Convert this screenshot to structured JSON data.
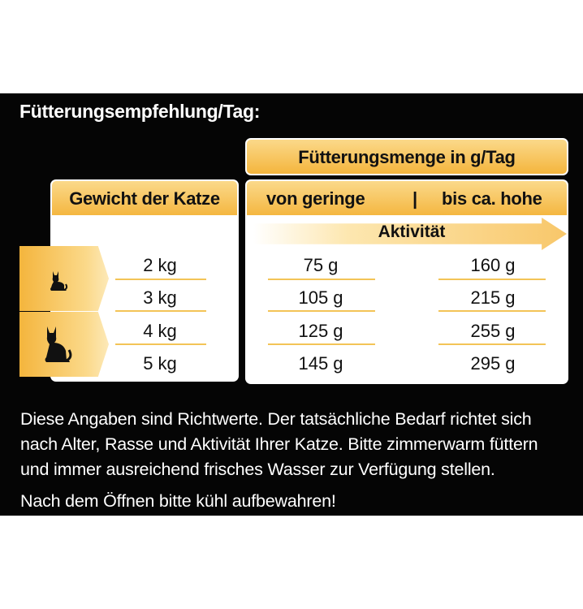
{
  "heading": "Fütterungsempfehlung/Tag:",
  "table": {
    "left_header": "Gewicht der Katze",
    "right_top_header": "Fütterungsmenge in g/Tag",
    "col_low": "von geringe",
    "col_sep": "|",
    "col_high": "bis ca. hohe",
    "activity_label": "Aktivität",
    "rows": [
      {
        "weight": "2 kg",
        "low": "75 g",
        "high": "160 g"
      },
      {
        "weight": "3 kg",
        "low": "105 g",
        "high": "215 g"
      },
      {
        "weight": "4 kg",
        "low": "125 g",
        "high": "255 g"
      },
      {
        "weight": "5 kg",
        "low": "145 g",
        "high": "295 g"
      }
    ]
  },
  "icons": {
    "small_cat": "sitting-cat-icon",
    "large_cat": "sitting-cat-icon"
  },
  "notes": {
    "line1": "Diese Angaben sind Richtwerte. Der tatsächliche Bedarf richtet sich",
    "line2": "nach Alter, Rasse und Aktivität Ihrer Katze. Bitte zimmerwarm füttern",
    "line3": "und immer ausreichend frisches Wasser zur Verfügung stellen.",
    "line4": "Nach dem Öffnen bitte kühl aufbewahren!"
  },
  "colors": {
    "background": "#050505",
    "accent": "#f4b53d",
    "accent_light": "#fbd98a"
  }
}
